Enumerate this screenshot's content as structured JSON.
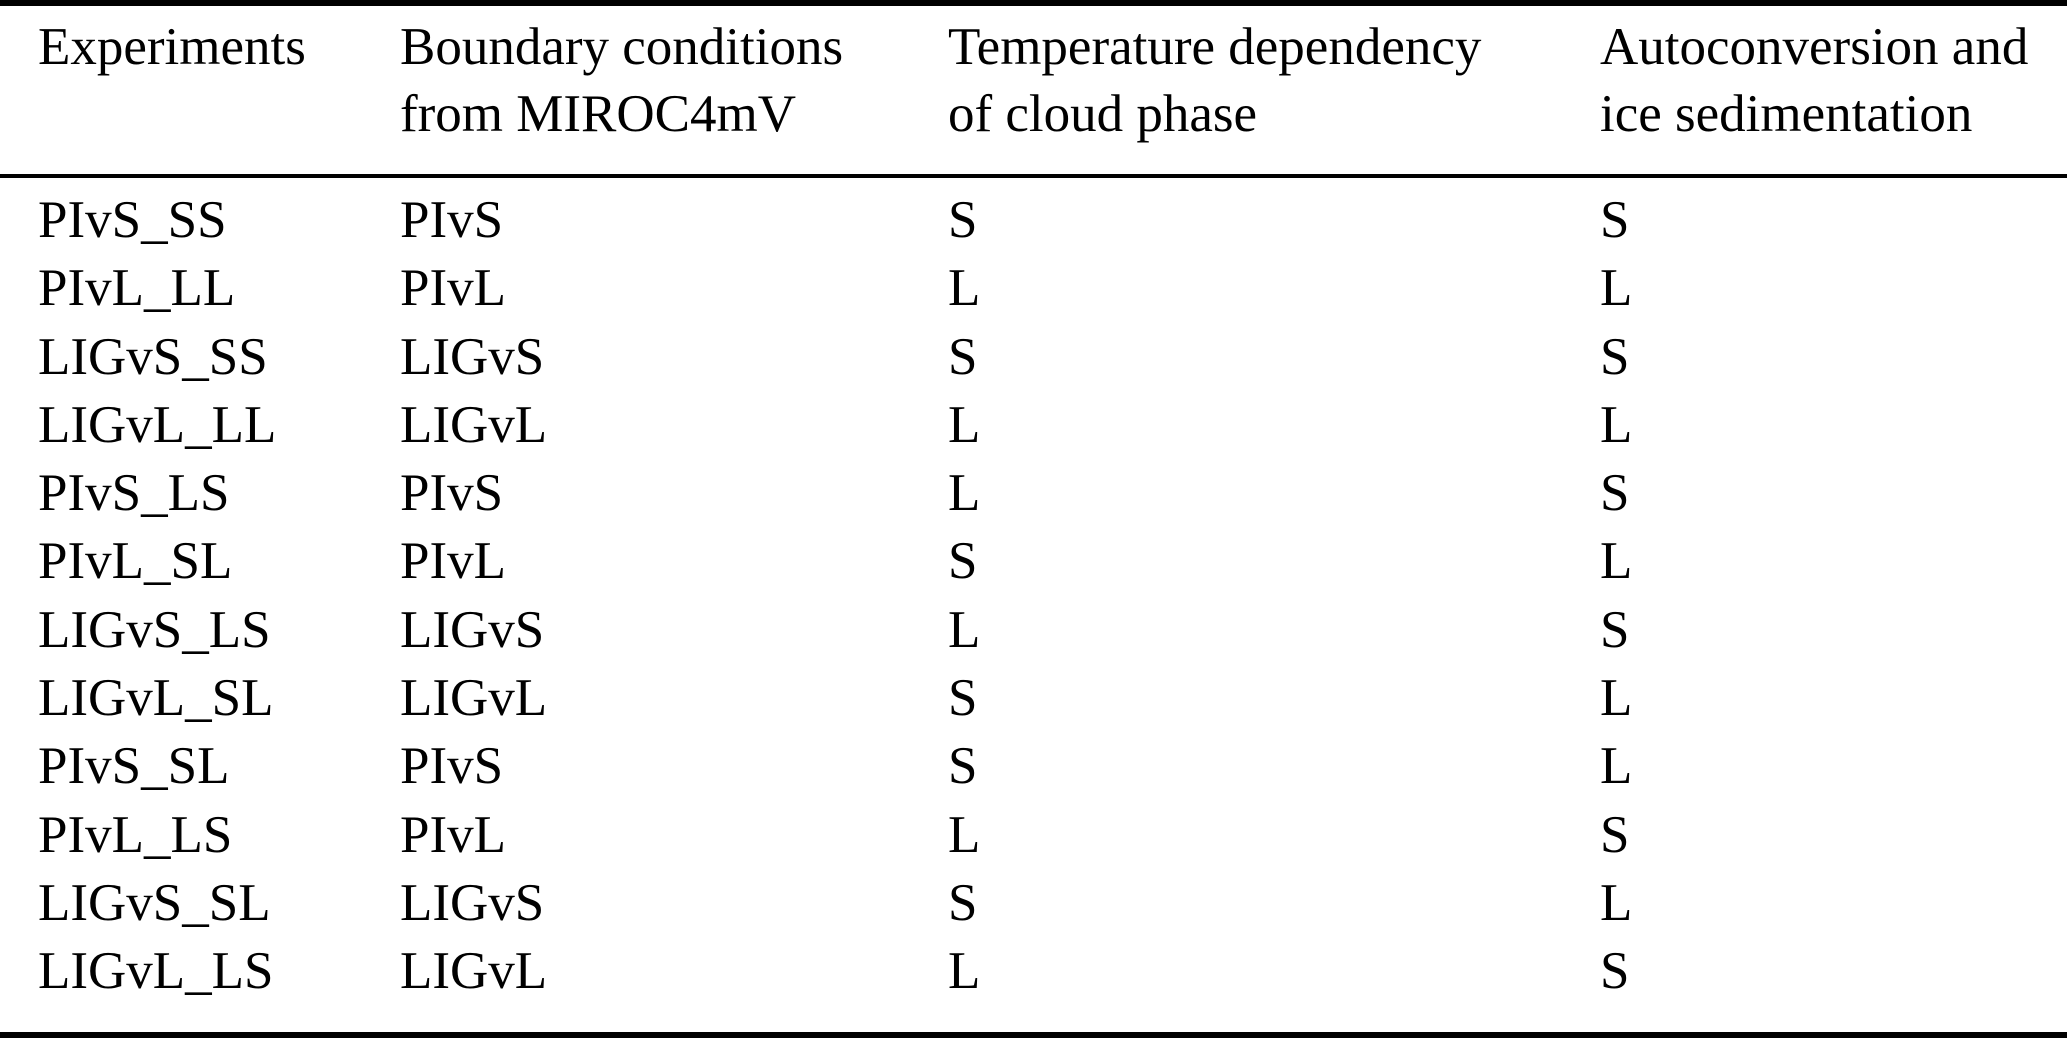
{
  "colors": {
    "background": "#ffffff",
    "text": "#000000",
    "rule": "#000000"
  },
  "table": {
    "header": [
      {
        "line1": "Experiments",
        "line2": ""
      },
      {
        "line1": "Boundary conditions",
        "line2": "from MIROC4mV"
      },
      {
        "line1": "Temperature dependency",
        "line2": "of cloud phase"
      },
      {
        "line1": "Autoconversion and",
        "line2": "ice sedimentation"
      }
    ],
    "column_keys": [
      "experiment",
      "boundary-condition",
      "temperature-dependency",
      "autoconversion"
    ],
    "rows": [
      [
        "PIvS_SS",
        "PIvS",
        "S",
        "S"
      ],
      [
        "PIvL_LL",
        "PIvL",
        "L",
        "L"
      ],
      [
        "LIGvS_SS",
        "LIGvS",
        "S",
        "S"
      ],
      [
        "LIGvL_LL",
        "LIGvL",
        "L",
        "L"
      ],
      [
        "PIvS_LS",
        "PIvS",
        "L",
        "S"
      ],
      [
        "PIvL_SL",
        "PIvL",
        "S",
        "L"
      ],
      [
        "LIGvS_LS",
        "LIGvS",
        "L",
        "S"
      ],
      [
        "LIGvL_SL",
        "LIGvL",
        "S",
        "L"
      ],
      [
        "PIvS_SL",
        "PIvS",
        "S",
        "L"
      ],
      [
        "PIvL_LS",
        "PIvL",
        "L",
        "S"
      ],
      [
        "LIGvS_SL",
        "LIGvS",
        "S",
        "L"
      ],
      [
        "LIGvL_LS",
        "LIGvL",
        "L",
        "S"
      ]
    ]
  }
}
